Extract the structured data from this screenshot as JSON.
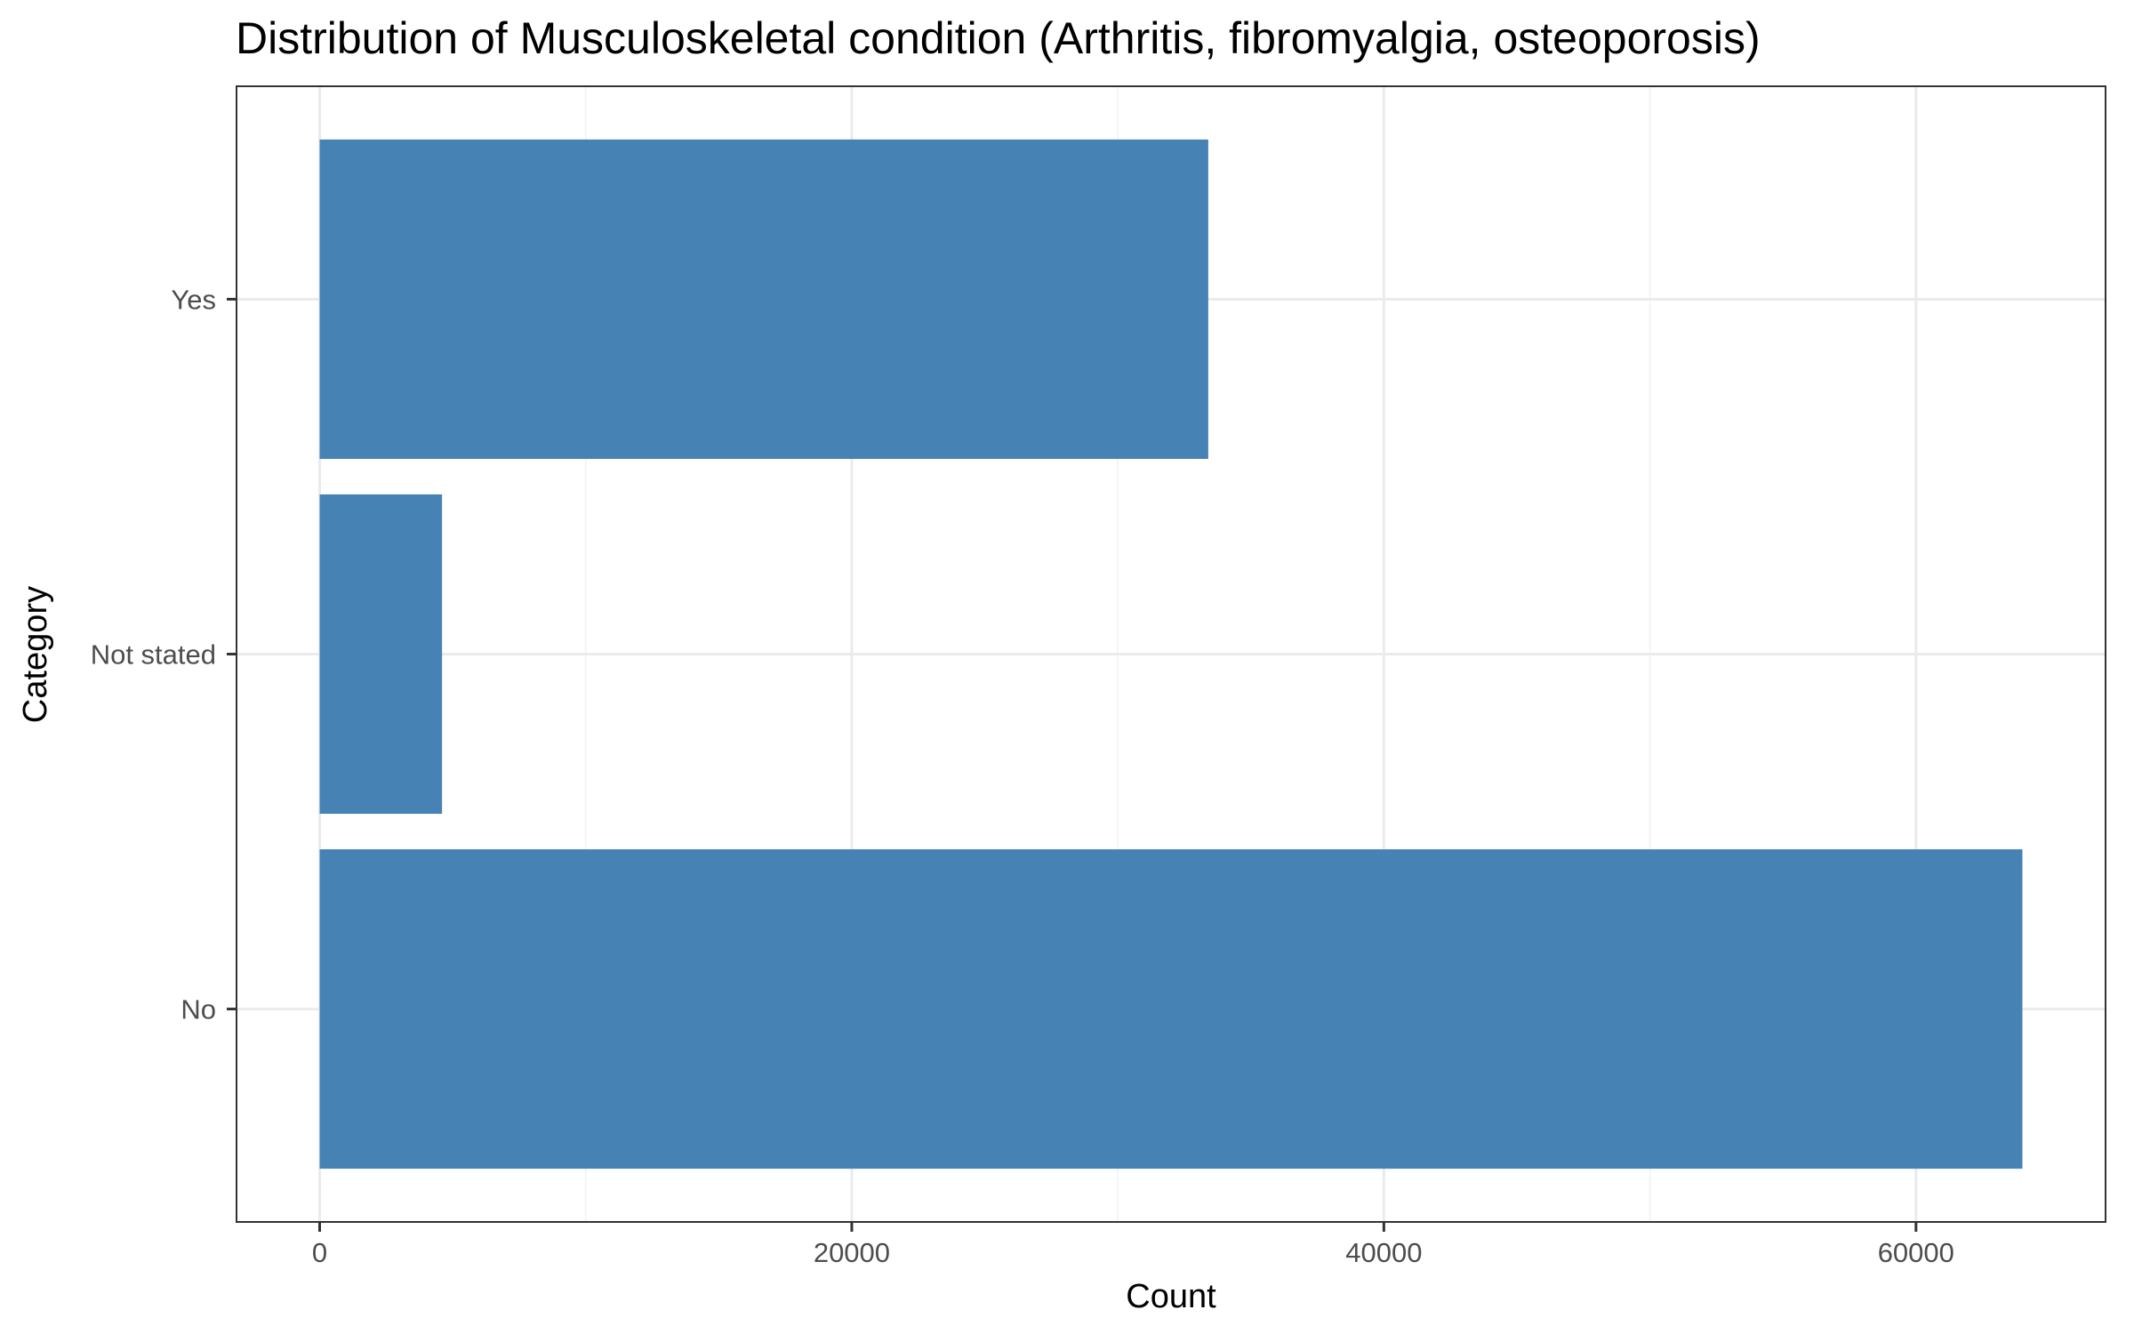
{
  "chart_data": {
    "type": "bar",
    "orientation": "horizontal",
    "title": "Distribution of Musculoskeletal condition (Arthritis, fibromyalgia, osteoporosis)",
    "xlabel": "Count",
    "ylabel": "Category",
    "categories": [
      "No",
      "Not stated",
      "Yes"
    ],
    "values": [
      64000,
      4600,
      33400
    ],
    "xlim": [
      -3125,
      67125
    ],
    "xticks": [
      0,
      20000,
      40000,
      60000
    ],
    "xtick_labels": [
      "0",
      "20000",
      "40000",
      "60000"
    ],
    "bar_color": "#4682b4",
    "grid": true,
    "legend": "none"
  }
}
